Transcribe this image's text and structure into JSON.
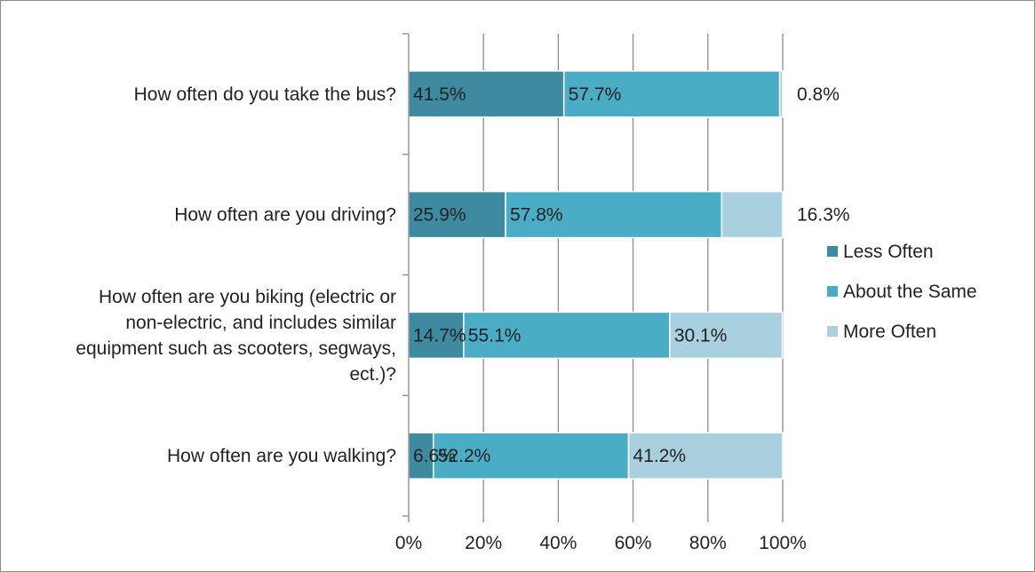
{
  "chart_data": {
    "type": "bar",
    "orientation": "horizontal",
    "stacked": true,
    "categories": [
      "How often do you take the bus?",
      "How often are you driving?",
      "How often are you biking (electric or non-electric, and includes similar equipment such as scooters, segways, ect.)?",
      "How often are you walking?"
    ],
    "category_lines": [
      [
        "How often do you take the bus?"
      ],
      [
        "How often are you driving?"
      ],
      [
        "How often are you biking (electric or",
        "non-electric, and includes similar",
        "equipment such as scooters, segways,",
        "ect.)?"
      ],
      [
        "How often are you walking?"
      ]
    ],
    "series": [
      {
        "name": "Less Often",
        "color": "#3E8BA1",
        "values": [
          41.5,
          25.9,
          14.7,
          6.6
        ],
        "labels": [
          "41.5%",
          "25.9%",
          "14.7%",
          "6.6%"
        ]
      },
      {
        "name": "About the Same",
        "color": "#4BACC6",
        "values": [
          57.7,
          57.8,
          55.1,
          52.2
        ],
        "labels": [
          "57.7%",
          "57.8%",
          "55.1%",
          "52.2%"
        ]
      },
      {
        "name": "More Often",
        "color": "#A9D0DE",
        "values": [
          0.8,
          16.3,
          30.1,
          41.2
        ],
        "labels": [
          "0.8%",
          "16.3%",
          "30.1%",
          "41.2%"
        ]
      }
    ],
    "xlim": [
      0,
      100
    ],
    "x_ticks": [
      0,
      20,
      40,
      60,
      80,
      100
    ],
    "x_tick_labels": [
      "0%",
      "20%",
      "40%",
      "60%",
      "80%",
      "100%"
    ],
    "grid": true,
    "legend_position": "right",
    "title": "",
    "xlabel": "",
    "ylabel": ""
  }
}
